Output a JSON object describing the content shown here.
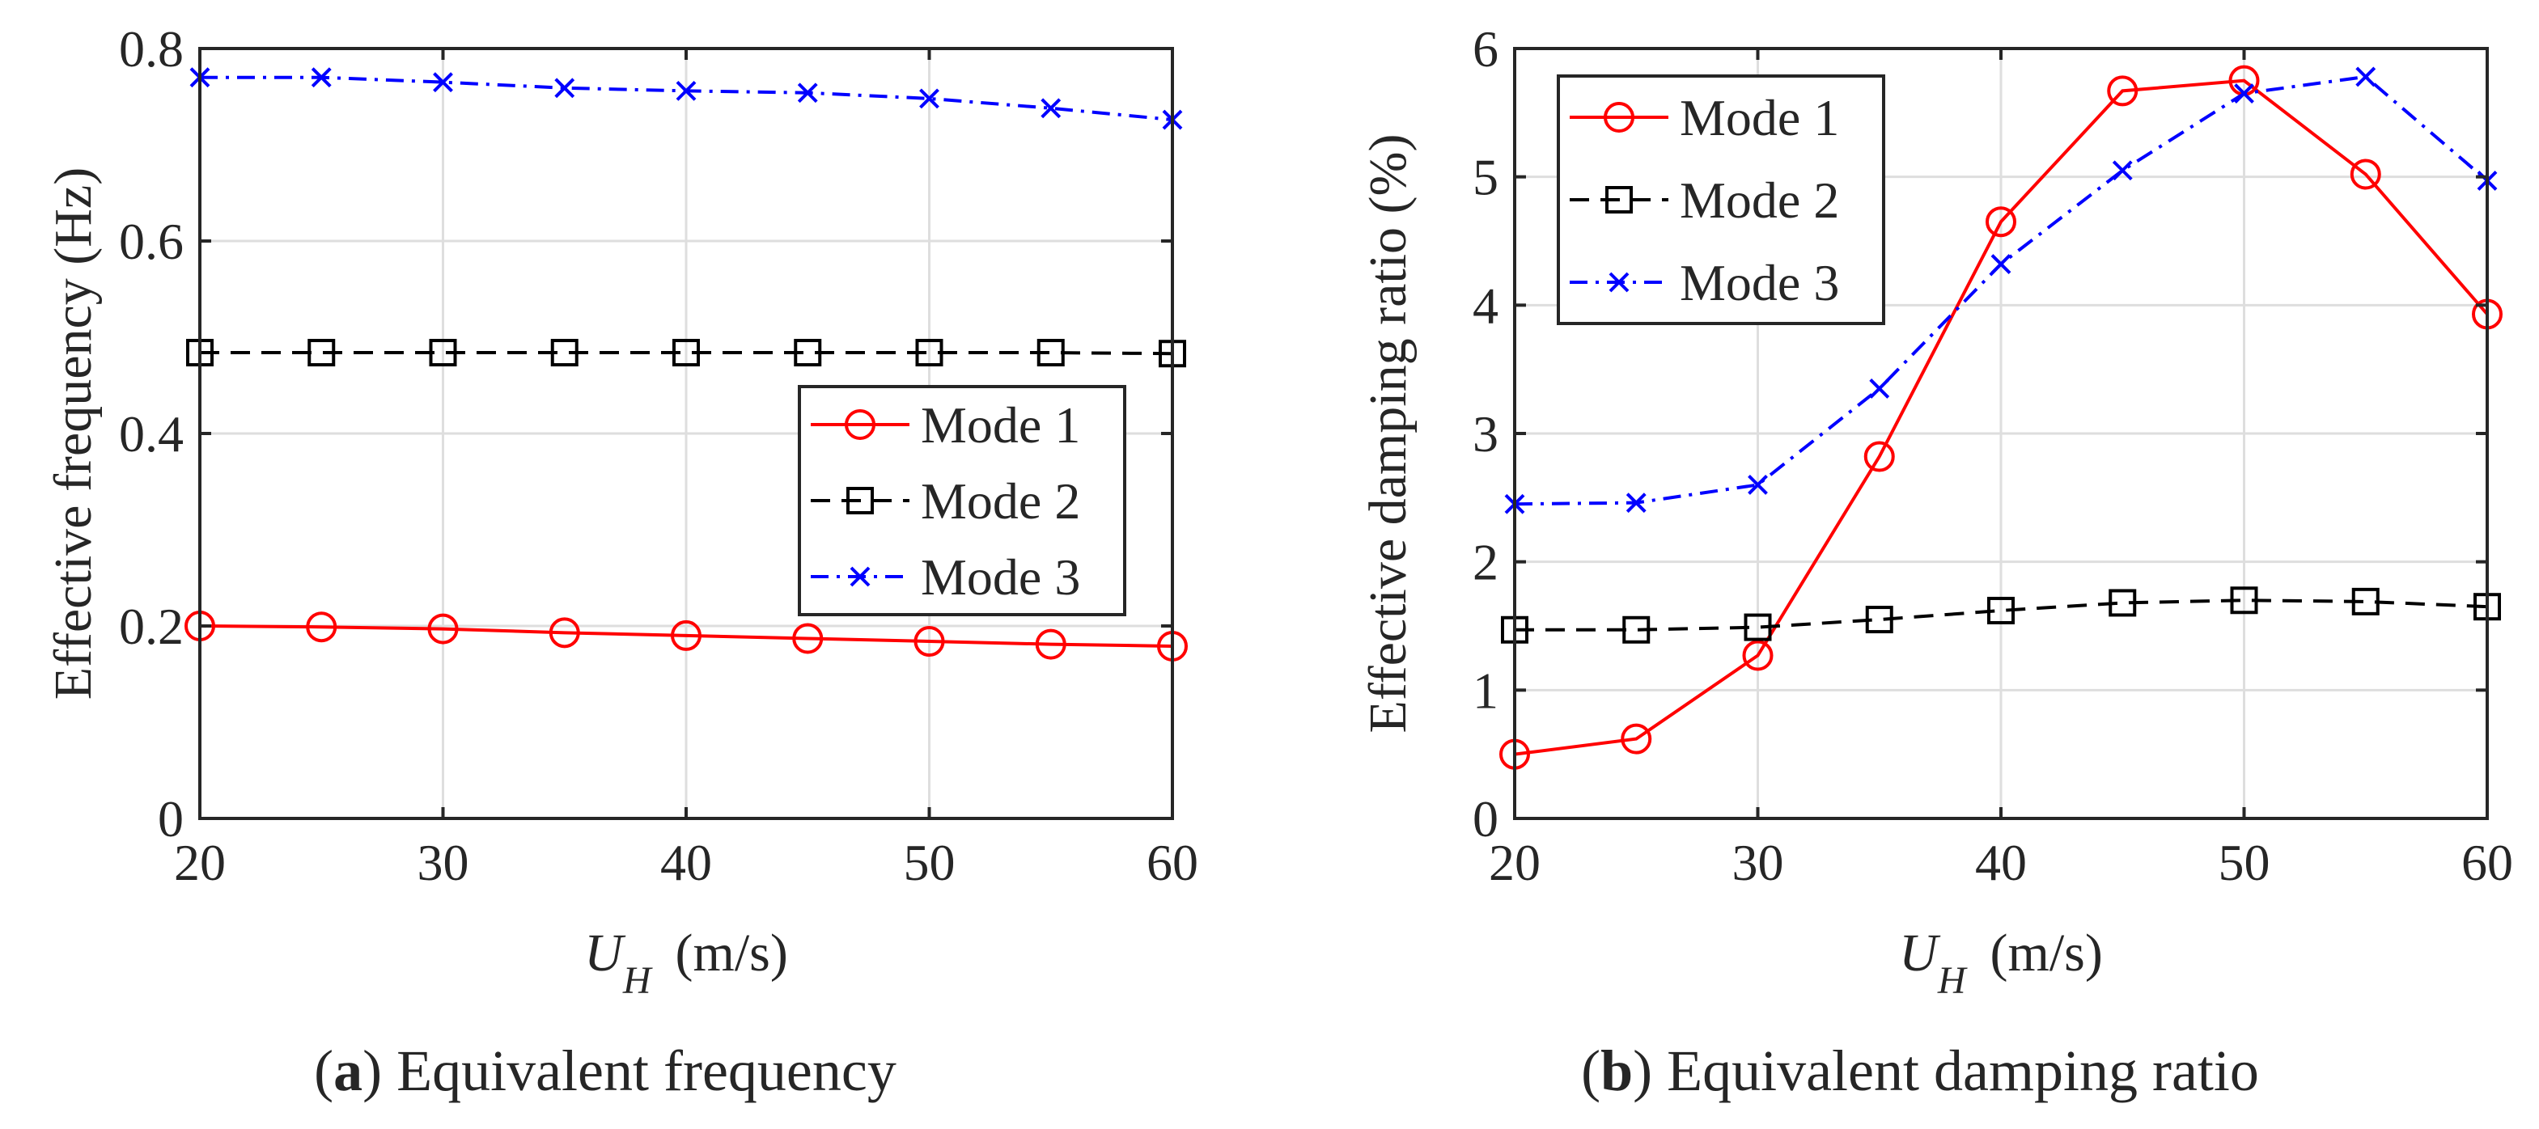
{
  "chart_data": [
    {
      "type": "line",
      "caption_letter": "a",
      "caption_text": "Equivalent frequency",
      "ylabel": "Effective frequency (Hz)",
      "xlabel_symbol": "U",
      "xlabel_subscript": "H",
      "xlabel_unit": "(m/s)",
      "x": [
        20,
        25,
        30,
        35,
        40,
        45,
        50,
        55,
        60
      ],
      "xlim": [
        20,
        60
      ],
      "ylim": [
        0,
        0.8
      ],
      "xticks": [
        20,
        30,
        40,
        50,
        60
      ],
      "yticks": [
        0,
        0.2,
        0.4,
        0.6,
        0.8
      ],
      "xtick_labels": [
        "20",
        "30",
        "40",
        "50",
        "60"
      ],
      "ytick_labels": [
        "0",
        "0.2",
        "0.4",
        "0.6",
        "0.8"
      ],
      "grid": true,
      "legend_position": "center-right",
      "series": [
        {
          "name": "Mode 1",
          "color": "#ff0000",
          "marker": "circle",
          "dash": "solid",
          "values": [
            0.2,
            0.199,
            0.197,
            0.193,
            0.19,
            0.187,
            0.184,
            0.181,
            0.179
          ]
        },
        {
          "name": "Mode 2",
          "color": "#000000",
          "marker": "square",
          "dash": "dashed",
          "values": [
            0.484,
            0.484,
            0.484,
            0.484,
            0.484,
            0.484,
            0.484,
            0.484,
            0.483
          ]
        },
        {
          "name": "Mode 3",
          "color": "#0000ff",
          "marker": "x",
          "dash": "dashdot",
          "values": [
            0.77,
            0.77,
            0.765,
            0.759,
            0.756,
            0.754,
            0.748,
            0.738,
            0.726
          ]
        }
      ]
    },
    {
      "type": "line",
      "caption_letter": "b",
      "caption_text": "Equivalent damping ratio",
      "ylabel": "Effective damping ratio (%)",
      "xlabel_symbol": "U",
      "xlabel_subscript": "H",
      "xlabel_unit": "(m/s)",
      "x": [
        20,
        25,
        30,
        35,
        40,
        45,
        50,
        55,
        60
      ],
      "xlim": [
        20,
        60
      ],
      "ylim": [
        0,
        6
      ],
      "xticks": [
        20,
        30,
        40,
        50,
        60
      ],
      "yticks": [
        0,
        1,
        2,
        3,
        4,
        5,
        6
      ],
      "xtick_labels": [
        "20",
        "30",
        "40",
        "50",
        "60"
      ],
      "ytick_labels": [
        "0",
        "1",
        "2",
        "3",
        "4",
        "5",
        "6"
      ],
      "grid": true,
      "legend_position": "top-left",
      "series": [
        {
          "name": "Mode 1",
          "color": "#ff0000",
          "marker": "circle",
          "dash": "solid",
          "values": [
            0.5,
            0.62,
            1.27,
            2.82,
            4.65,
            5.67,
            5.75,
            5.02,
            3.93
          ]
        },
        {
          "name": "Mode 2",
          "color": "#000000",
          "marker": "square",
          "dash": "dashed",
          "values": [
            1.47,
            1.47,
            1.49,
            1.55,
            1.62,
            1.68,
            1.7,
            1.69,
            1.65
          ]
        },
        {
          "name": "Mode 3",
          "color": "#0000ff",
          "marker": "x",
          "dash": "dashdot",
          "values": [
            2.45,
            2.46,
            2.6,
            3.35,
            4.32,
            5.05,
            5.65,
            5.78,
            4.97
          ]
        }
      ]
    }
  ]
}
